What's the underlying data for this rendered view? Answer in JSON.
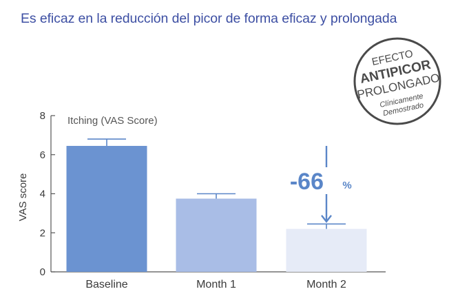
{
  "headline": "Es eficaz en la reducción del picor de forma eficaz y prolongada",
  "colors": {
    "headline": "#3d4fa3",
    "bar_baseline": "#6b93d1",
    "bar_month1": "#a9bde6",
    "bar_month2": "#e6ebf7",
    "error_bar": "#5a86c8",
    "annotation": "#5a86c8"
  },
  "seal": {
    "line1": "EFECTO",
    "line2": "ANTIPICOR",
    "line3": "PROLONGADO",
    "line4": "Clínicamente",
    "line5": "Demostrado"
  },
  "chart_data": {
    "type": "bar",
    "title": "Itching (VAS Score)",
    "ylabel": "VAS score",
    "xlabel": "",
    "ylim": [
      0,
      8
    ],
    "yticks": [
      0,
      2,
      4,
      6,
      8
    ],
    "categories": [
      "Baseline",
      "Month 1",
      "Month 2"
    ],
    "values": [
      6.45,
      3.75,
      2.2
    ],
    "error_upper": [
      6.8,
      4.0,
      2.45
    ],
    "annotation": {
      "value": "-66",
      "unit": "%",
      "target_category": "Month 2"
    }
  }
}
